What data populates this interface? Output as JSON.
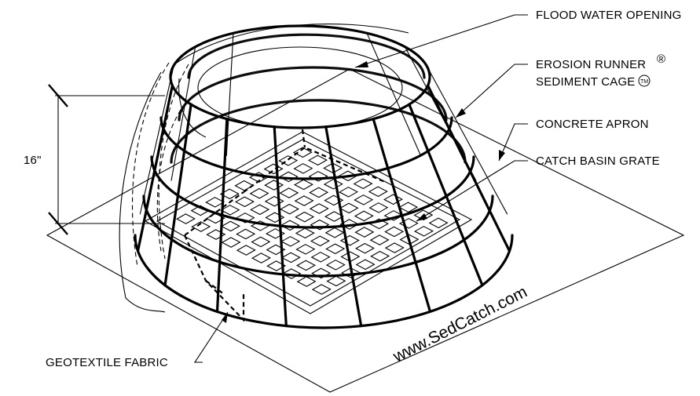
{
  "labels": {
    "flood_water_opening": "FLOOD WATER OPENING",
    "erosion_runner": "EROSION RUNNER",
    "registered_mark": "®",
    "sediment_cage": "SEDIMENT CAGE",
    "trademark_mark": "TM",
    "concrete_apron": "CONCRETE APRON",
    "catch_basin_grate": "CATCH BASIN GRATE",
    "geotextile_fabric": "GEOTEXTILE FABRIC",
    "height_dimension": "16\""
  },
  "watermark": "www.SedCatch.com"
}
